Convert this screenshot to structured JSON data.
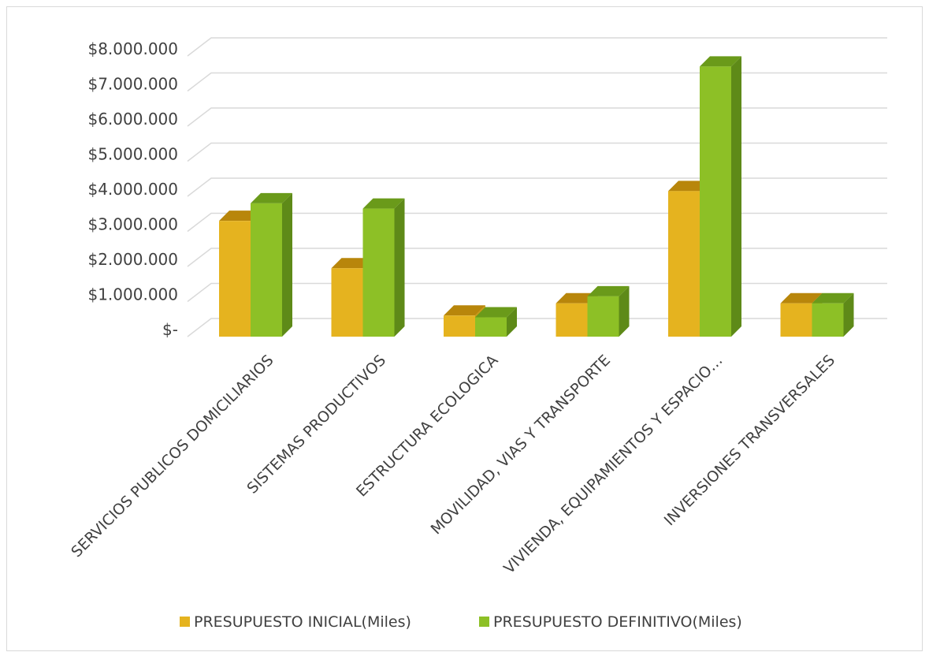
{
  "chart_data": {
    "type": "bar",
    "title": "",
    "xlabel": "",
    "ylabel": "",
    "categories": [
      "SERVICIOS PUBLICOS DOMICILIARIOS",
      "SISTEMAS PRODUCTIVOS",
      "ESTRUCTURA ECOLOGICA",
      "MOVILIDAD, VIAS Y TRANSPORTE",
      "VIVIENDA, EQUIPAMIENTOS Y ESPACIO…",
      "INVERSIONES TRANSVERSALES"
    ],
    "series": [
      {
        "name": "PRESUPUESTO INICIAL(Miles)",
        "color": "#E5B31F",
        "top_color": "#B8860B",
        "side_color": "#C79A14",
        "values": [
          3300000,
          1950000,
          600000,
          950000,
          4150000,
          950000
        ]
      },
      {
        "name": "PRESUPUESTO DEFINITIVO(Miles)",
        "color": "#8DC026",
        "top_color": "#6A9A1A",
        "side_color": "#5E8A18",
        "values": [
          3800000,
          3650000,
          550000,
          1150000,
          7700000,
          950000
        ]
      }
    ],
    "y_ticks": [
      {
        "value": 0,
        "label": "$-"
      },
      {
        "value": 1000000,
        "label": "$1.000.000"
      },
      {
        "value": 2000000,
        "label": "$2.000.000"
      },
      {
        "value": 3000000,
        "label": "$3.000.000"
      },
      {
        "value": 4000000,
        "label": "$4.000.000"
      },
      {
        "value": 5000000,
        "label": "$5.000.000"
      },
      {
        "value": 6000000,
        "label": "$6.000.000"
      },
      {
        "value": 7000000,
        "label": "$7.000.000"
      },
      {
        "value": 8000000,
        "label": "$8.000.000"
      }
    ],
    "ylim": [
      0,
      8000000
    ],
    "grid": true,
    "three_d": true,
    "legend_position": "bottom"
  }
}
